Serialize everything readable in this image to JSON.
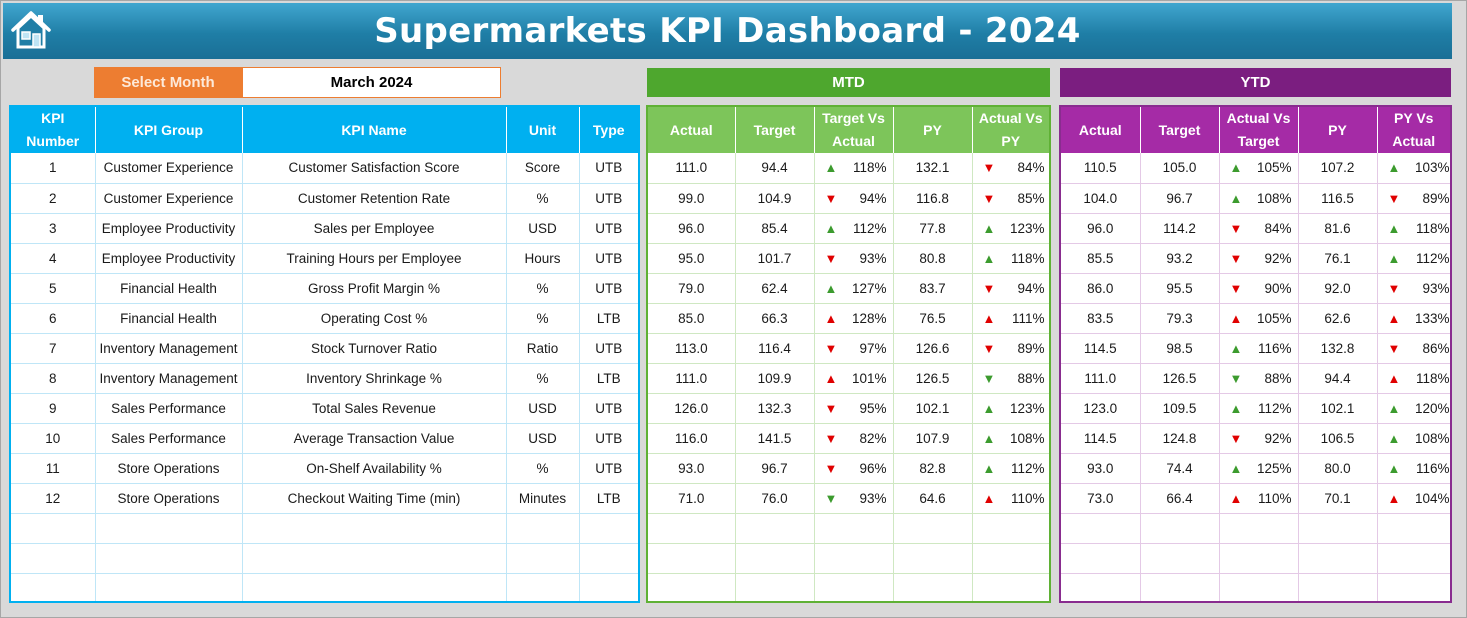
{
  "title": "Supermarkets KPI Dashboard - 2024",
  "select_month": {
    "label": "Select Month",
    "value": "March 2024"
  },
  "sections": {
    "mtd": "MTD",
    "ytd": "YTD"
  },
  "colors": {
    "header": "#1f7ea6",
    "info": "#00b0f0",
    "mtd": "#4ea72e",
    "ytd": "#7b1e80",
    "select": "#ed7d31",
    "arrow_green": "#3c9b2e",
    "arrow_red": "#e00000"
  },
  "info_headers": [
    "KPI Number",
    "KPI Group",
    "KPI Name",
    "Unit",
    "Type"
  ],
  "mtd_headers": [
    "Actual",
    "Target",
    "Target Vs Actual",
    "PY",
    "Actual Vs PY"
  ],
  "ytd_headers": [
    "Actual",
    "Target",
    "Actual Vs Target",
    "PY",
    "PY Vs Actual"
  ],
  "icons": {
    "home": "home-icon",
    "up": "triangle-up-icon",
    "down": "triangle-down-icon"
  },
  "rows": [
    {
      "num": "1",
      "group": "Customer Experience",
      "name": "Customer Satisfaction Score",
      "unit": "Score",
      "type": "UTB",
      "mtd": {
        "actual": "111.0",
        "target": "94.4",
        "tva": "118%",
        "tva_dir": "up",
        "tva_good": true,
        "py": "132.1",
        "avpy": "84%",
        "avpy_dir": "down",
        "avpy_good": false
      },
      "ytd": {
        "actual": "110.5",
        "target": "105.0",
        "avt": "105%",
        "avt_dir": "up",
        "avt_good": true,
        "py": "107.2",
        "pva": "103%",
        "pva_dir": "up",
        "pva_good": true
      }
    },
    {
      "num": "2",
      "group": "Customer Experience",
      "name": "Customer Retention Rate",
      "unit": "%",
      "type": "UTB",
      "mtd": {
        "actual": "99.0",
        "target": "104.9",
        "tva": "94%",
        "tva_dir": "down",
        "tva_good": false,
        "py": "116.8",
        "avpy": "85%",
        "avpy_dir": "down",
        "avpy_good": false
      },
      "ytd": {
        "actual": "104.0",
        "target": "96.7",
        "avt": "108%",
        "avt_dir": "up",
        "avt_good": true,
        "py": "116.5",
        "pva": "89%",
        "pva_dir": "down",
        "pva_good": false
      }
    },
    {
      "num": "3",
      "group": "Employee Productivity",
      "name": "Sales per Employee",
      "unit": "USD",
      "type": "UTB",
      "mtd": {
        "actual": "96.0",
        "target": "85.4",
        "tva": "112%",
        "tva_dir": "up",
        "tva_good": true,
        "py": "77.8",
        "avpy": "123%",
        "avpy_dir": "up",
        "avpy_good": true
      },
      "ytd": {
        "actual": "96.0",
        "target": "114.2",
        "avt": "84%",
        "avt_dir": "down",
        "avt_good": false,
        "py": "81.6",
        "pva": "118%",
        "pva_dir": "up",
        "pva_good": true
      }
    },
    {
      "num": "4",
      "group": "Employee Productivity",
      "name": "Training Hours per Employee",
      "unit": "Hours",
      "type": "UTB",
      "mtd": {
        "actual": "95.0",
        "target": "101.7",
        "tva": "93%",
        "tva_dir": "down",
        "tva_good": false,
        "py": "80.8",
        "avpy": "118%",
        "avpy_dir": "up",
        "avpy_good": true
      },
      "ytd": {
        "actual": "85.5",
        "target": "93.2",
        "avt": "92%",
        "avt_dir": "down",
        "avt_good": false,
        "py": "76.1",
        "pva": "112%",
        "pva_dir": "up",
        "pva_good": true
      }
    },
    {
      "num": "5",
      "group": "Financial Health",
      "name": "Gross Profit Margin %",
      "unit": "%",
      "type": "UTB",
      "mtd": {
        "actual": "79.0",
        "target": "62.4",
        "tva": "127%",
        "tva_dir": "up",
        "tva_good": true,
        "py": "83.7",
        "avpy": "94%",
        "avpy_dir": "down",
        "avpy_good": false
      },
      "ytd": {
        "actual": "86.0",
        "target": "95.5",
        "avt": "90%",
        "avt_dir": "down",
        "avt_good": false,
        "py": "92.0",
        "pva": "93%",
        "pva_dir": "down",
        "pva_good": false
      }
    },
    {
      "num": "6",
      "group": "Financial Health",
      "name": "Operating Cost %",
      "unit": "%",
      "type": "LTB",
      "mtd": {
        "actual": "85.0",
        "target": "66.3",
        "tva": "128%",
        "tva_dir": "up",
        "tva_good": false,
        "py": "76.5",
        "avpy": "111%",
        "avpy_dir": "up",
        "avpy_good": false
      },
      "ytd": {
        "actual": "83.5",
        "target": "79.3",
        "avt": "105%",
        "avt_dir": "up",
        "avt_good": false,
        "py": "62.6",
        "pva": "133%",
        "pva_dir": "up",
        "pva_good": false
      }
    },
    {
      "num": "7",
      "group": "Inventory Management",
      "name": "Stock Turnover Ratio",
      "unit": "Ratio",
      "type": "UTB",
      "mtd": {
        "actual": "113.0",
        "target": "116.4",
        "tva": "97%",
        "tva_dir": "down",
        "tva_good": false,
        "py": "126.6",
        "avpy": "89%",
        "avpy_dir": "down",
        "avpy_good": false
      },
      "ytd": {
        "actual": "114.5",
        "target": "98.5",
        "avt": "116%",
        "avt_dir": "up",
        "avt_good": true,
        "py": "132.8",
        "pva": "86%",
        "pva_dir": "down",
        "pva_good": false
      }
    },
    {
      "num": "8",
      "group": "Inventory Management",
      "name": "Inventory Shrinkage %",
      "unit": "%",
      "type": "LTB",
      "mtd": {
        "actual": "111.0",
        "target": "109.9",
        "tva": "101%",
        "tva_dir": "up",
        "tva_good": false,
        "py": "126.5",
        "avpy": "88%",
        "avpy_dir": "down",
        "avpy_good": true
      },
      "ytd": {
        "actual": "111.0",
        "target": "126.5",
        "avt": "88%",
        "avt_dir": "down",
        "avt_good": true,
        "py": "94.4",
        "pva": "118%",
        "pva_dir": "up",
        "pva_good": false
      }
    },
    {
      "num": "9",
      "group": "Sales Performance",
      "name": "Total Sales Revenue",
      "unit": "USD",
      "type": "UTB",
      "mtd": {
        "actual": "126.0",
        "target": "132.3",
        "tva": "95%",
        "tva_dir": "down",
        "tva_good": false,
        "py": "102.1",
        "avpy": "123%",
        "avpy_dir": "up",
        "avpy_good": true
      },
      "ytd": {
        "actual": "123.0",
        "target": "109.5",
        "avt": "112%",
        "avt_dir": "up",
        "avt_good": true,
        "py": "102.1",
        "pva": "120%",
        "pva_dir": "up",
        "pva_good": true
      }
    },
    {
      "num": "10",
      "group": "Sales Performance",
      "name": "Average Transaction Value",
      "unit": "USD",
      "type": "UTB",
      "mtd": {
        "actual": "116.0",
        "target": "141.5",
        "tva": "82%",
        "tva_dir": "down",
        "tva_good": false,
        "py": "107.9",
        "avpy": "108%",
        "avpy_dir": "up",
        "avpy_good": true
      },
      "ytd": {
        "actual": "114.5",
        "target": "124.8",
        "avt": "92%",
        "avt_dir": "down",
        "avt_good": false,
        "py": "106.5",
        "pva": "108%",
        "pva_dir": "up",
        "pva_good": true
      }
    },
    {
      "num": "11",
      "group": "Store Operations",
      "name": "On-Shelf Availability %",
      "unit": "%",
      "type": "UTB",
      "mtd": {
        "actual": "93.0",
        "target": "96.7",
        "tva": "96%",
        "tva_dir": "down",
        "tva_good": false,
        "py": "82.8",
        "avpy": "112%",
        "avpy_dir": "up",
        "avpy_good": true
      },
      "ytd": {
        "actual": "93.0",
        "target": "74.4",
        "avt": "125%",
        "avt_dir": "up",
        "avt_good": true,
        "py": "80.0",
        "pva": "116%",
        "pva_dir": "up",
        "pva_good": true
      }
    },
    {
      "num": "12",
      "group": "Store Operations",
      "name": "Checkout Waiting Time (min)",
      "unit": "Minutes",
      "type": "LTB",
      "mtd": {
        "actual": "71.0",
        "target": "76.0",
        "tva": "93%",
        "tva_dir": "down",
        "tva_good": true,
        "py": "64.6",
        "avpy": "110%",
        "avpy_dir": "up",
        "avpy_good": false
      },
      "ytd": {
        "actual": "73.0",
        "target": "66.4",
        "avt": "110%",
        "avt_dir": "up",
        "avt_good": false,
        "py": "70.1",
        "pva": "104%",
        "pva_dir": "up",
        "pva_good": false
      }
    }
  ],
  "empty_rows": 3
}
